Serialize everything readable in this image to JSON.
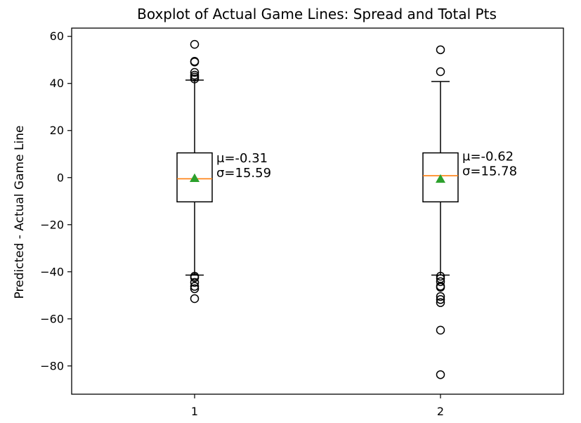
{
  "chart_data": {
    "type": "boxplot",
    "title": "Boxplot of Actual Game Lines: Spread and Total Pts",
    "xlabel": "",
    "ylabel": "Predicted - Actual Game Line",
    "categories": [
      "1",
      "2"
    ],
    "ylim": [
      -92,
      63.5
    ],
    "yticks": [
      60,
      40,
      20,
      0,
      -20,
      -40,
      -60,
      -80
    ],
    "ytick_labels": [
      "60",
      "40",
      "20",
      "0",
      "−20",
      "−40",
      "−60",
      "−80"
    ],
    "grid": false,
    "boxes": [
      {
        "category": "1",
        "q1": -10.3,
        "median": -0.5,
        "q3": 10.5,
        "whisker_low": -41.4,
        "whisker_high": 41.4,
        "mean": -0.31,
        "outliers": [
          56.6,
          49.4,
          49.1,
          44.7,
          43.5,
          42.7,
          41.9,
          -41.9,
          -42.5,
          -44.5,
          -46.2,
          -47.2,
          -51.4
        ],
        "annotation": [
          "μ=-0.31",
          "σ=15.59"
        ]
      },
      {
        "category": "2",
        "q1": -10.3,
        "median": 0.8,
        "q3": 10.5,
        "whisker_low": -41.4,
        "whisker_high": 40.8,
        "mean": -0.62,
        "outliers": [
          54.3,
          45.0,
          -41.9,
          -42.9,
          -44.2,
          -46.1,
          -46.6,
          -50.5,
          -51.8,
          -53.1,
          -64.8,
          -83.7
        ],
        "annotation": [
          "μ=-0.62",
          "σ=15.78"
        ]
      }
    ],
    "colors": {
      "box": "#000000",
      "median": "#ff7f0e",
      "mean_marker": "#2ca02c",
      "background": "#ffffff"
    }
  }
}
